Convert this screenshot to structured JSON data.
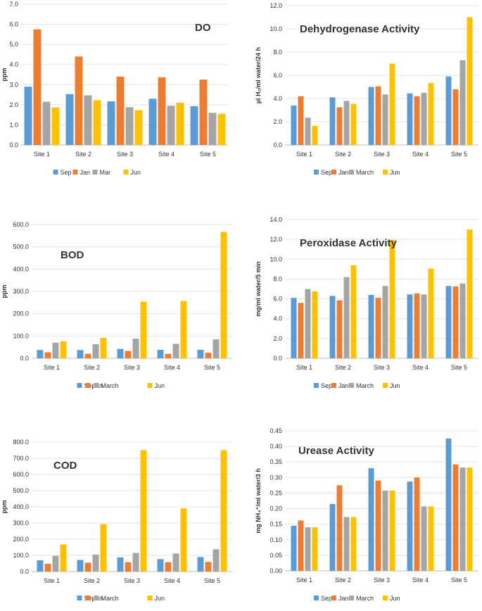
{
  "colors": {
    "Sep": "#5b9bd5",
    "Jan": "#ed7d31",
    "Mar": "#a5a5a5",
    "March": "#a5a5a5",
    "Jun": "#ffc000"
  },
  "chart_data": [
    {
      "type": "bar",
      "title": "DO",
      "ylabel": "ppm",
      "categories": [
        "Site 1",
        "Site 2",
        "Site 3",
        "Site 4",
        "Site 5"
      ],
      "ylim": [
        0,
        7
      ],
      "ystep": 1,
      "decimals": 1,
      "series": [
        {
          "name": "Sep",
          "values": [
            2.9,
            2.53,
            2.17,
            2.3,
            1.93
          ]
        },
        {
          "name": "Jan",
          "values": [
            5.75,
            4.4,
            3.4,
            3.37,
            3.25
          ]
        },
        {
          "name": "Mar",
          "values": [
            2.15,
            2.47,
            1.88,
            1.95,
            1.6
          ]
        },
        {
          "name": "Jun",
          "values": [
            1.87,
            2.23,
            1.73,
            2.1,
            1.55
          ]
        }
      ]
    },
    {
      "type": "bar",
      "title": "Dehydrogenase Activity",
      "ylabel": "µl H₂/ml water/24 h",
      "categories": [
        "Site 1",
        "Site 2",
        "Site 3",
        "Site 4",
        "Site 5"
      ],
      "ylim": [
        0,
        12
      ],
      "ystep": 2,
      "decimals": 1,
      "series": [
        {
          "name": "Sep",
          "values": [
            3.4,
            4.1,
            5.0,
            4.45,
            5.9
          ]
        },
        {
          "name": "Jan",
          "values": [
            4.2,
            3.25,
            5.05,
            4.2,
            4.8
          ]
        },
        {
          "name": "March",
          "values": [
            2.35,
            3.8,
            4.35,
            4.5,
            7.3
          ]
        },
        {
          "name": "Jun",
          "values": [
            1.65,
            3.55,
            7.0,
            5.35,
            11.0
          ]
        }
      ]
    },
    {
      "type": "bar",
      "title": "BOD",
      "ylabel": "ppm",
      "categories": [
        "Site 1",
        "Site 2",
        "Site 3",
        "Site 4",
        "Site 5"
      ],
      "ylim": [
        0,
        600
      ],
      "ystep": 100,
      "decimals": 1,
      "series": [
        {
          "name": "Sep",
          "values": [
            37,
            37,
            42,
            38,
            38
          ]
        },
        {
          "name": "Jan",
          "values": [
            27,
            20,
            33,
            20,
            25
          ]
        },
        {
          "name": "March",
          "values": [
            70,
            63,
            88,
            65,
            85
          ]
        },
        {
          "name": "Jun",
          "values": [
            76,
            92,
            254,
            257,
            567
          ]
        }
      ]
    },
    {
      "type": "bar",
      "title": "Peroxidase Activity",
      "ylabel": "mg/ml water/5 min",
      "categories": [
        "Site 1",
        "Site 2",
        "Site 3",
        "Site 4",
        "Site 5"
      ],
      "ylim": [
        0,
        14
      ],
      "ystep": 2,
      "decimals": 1,
      "series": [
        {
          "name": "Sep",
          "values": [
            6.1,
            6.3,
            6.4,
            6.45,
            7.3
          ]
        },
        {
          "name": "Jan",
          "values": [
            5.6,
            5.85,
            6.1,
            6.55,
            7.25
          ]
        },
        {
          "name": "March",
          "values": [
            7.0,
            8.2,
            7.3,
            6.45,
            7.55
          ]
        },
        {
          "name": "Jun",
          "values": [
            6.75,
            9.4,
            11.95,
            9.05,
            13.0
          ]
        }
      ]
    },
    {
      "type": "bar",
      "title": "COD",
      "ylabel": "ppm",
      "categories": [
        "Site 1",
        "Site 2",
        "Site 3",
        "Site 4",
        "Site 5"
      ],
      "ylim": [
        0,
        800
      ],
      "ystep": 100,
      "decimals": 1,
      "series": [
        {
          "name": "Sep",
          "values": [
            70,
            72,
            88,
            77,
            90
          ]
        },
        {
          "name": "Jan",
          "values": [
            48,
            55,
            58,
            58,
            60
          ]
        },
        {
          "name": "March",
          "values": [
            97,
            105,
            115,
            112,
            138
          ]
        },
        {
          "name": "Jun",
          "values": [
            168,
            293,
            750,
            390,
            750
          ]
        }
      ]
    },
    {
      "type": "bar",
      "title": "Urease Activity",
      "ylabel": "mg NH₄⁺/ml water/3 h",
      "categories": [
        "Site 1",
        "Site 2",
        "Site 3",
        "Site 4",
        "Site 5"
      ],
      "ylim": [
        0,
        0.45
      ],
      "ystep": 0.05,
      "decimals": 2,
      "series": [
        {
          "name": "Sep",
          "values": [
            0.145,
            0.215,
            0.33,
            0.287,
            0.425
          ]
        },
        {
          "name": "Jan",
          "values": [
            0.162,
            0.275,
            0.29,
            0.3,
            0.342
          ]
        },
        {
          "name": "March",
          "values": [
            0.14,
            0.173,
            0.258,
            0.207,
            0.332
          ]
        },
        {
          "name": "Jun",
          "values": [
            0.14,
            0.173,
            0.258,
            0.207,
            0.332
          ]
        }
      ]
    }
  ]
}
